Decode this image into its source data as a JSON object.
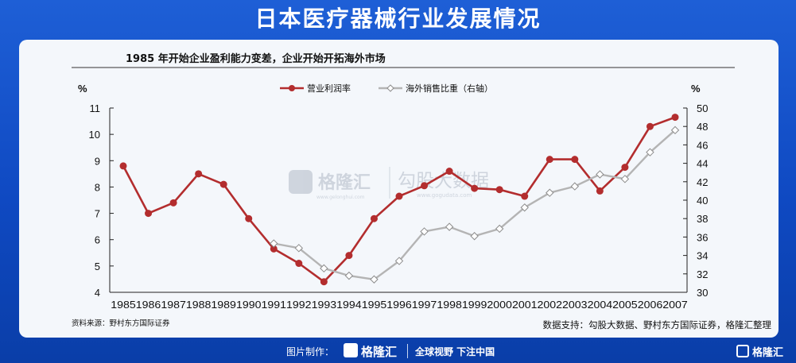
{
  "page": {
    "header_title": "日本医疗器械行业发展情况",
    "subtitle": "1985 年开始企业盈利能力变差，企业开始开拓海外市场",
    "source_left": "资料来源：野村东方国际证券",
    "source_right": "数据支持：勾股大数据、野村东方国际证券，格隆汇整理",
    "watermark_logo": "格隆汇",
    "watermark_logo_sub": "www.gelonghui.com",
    "watermark_text": "勾股大数据",
    "watermark_text_sub": "www.gogudata.com",
    "footer_made_by": "图片制作：",
    "footer_logo": "格隆汇",
    "footer_slogan": "全球视野 下注中国",
    "footer_right_logo": "格隆汇"
  },
  "colors": {
    "primary_series": "#b32d2e",
    "secondary_series": "#b4b4b4",
    "header_bg": "#1553cc",
    "card_bg": "#f4f7fb"
  },
  "chart_data": {
    "type": "line",
    "categories": [
      "1985",
      "1986",
      "1987",
      "1988",
      "1989",
      "1990",
      "1991",
      "1992",
      "1993",
      "1994",
      "1995",
      "1996",
      "1997",
      "1998",
      "1999",
      "2000",
      "2001",
      "2002",
      "2003",
      "2004",
      "2005",
      "2006",
      "2007"
    ],
    "y_left_label": "%",
    "y_right_label": "%",
    "y_left_range": [
      4,
      11
    ],
    "y_left_ticks": [
      4,
      5,
      6,
      7,
      8,
      9,
      10,
      11
    ],
    "y_right_range": [
      30,
      50
    ],
    "y_right_ticks": [
      30,
      32,
      34,
      36,
      38,
      40,
      42,
      44,
      46,
      48,
      50
    ],
    "legend_position": "top-right",
    "grid": false,
    "series": [
      {
        "name": "营业利润率",
        "axis": "left",
        "marker": "filled-circle",
        "values": [
          8.8,
          7.0,
          7.4,
          8.5,
          8.1,
          6.8,
          5.65,
          5.1,
          4.4,
          5.4,
          6.8,
          7.65,
          8.05,
          8.6,
          7.95,
          7.9,
          7.65,
          9.05,
          9.05,
          7.85,
          8.75,
          10.3,
          10.65
        ]
      },
      {
        "name": "海外销售比重（右轴）",
        "axis": "right",
        "marker": "hollow-diamond",
        "values": [
          null,
          null,
          null,
          null,
          null,
          null,
          35.3,
          34.8,
          32.6,
          31.8,
          31.4,
          33.4,
          36.6,
          37.1,
          36.1,
          36.9,
          39.2,
          40.8,
          41.5,
          42.8,
          42.3,
          45.2,
          47.6
        ]
      }
    ]
  }
}
